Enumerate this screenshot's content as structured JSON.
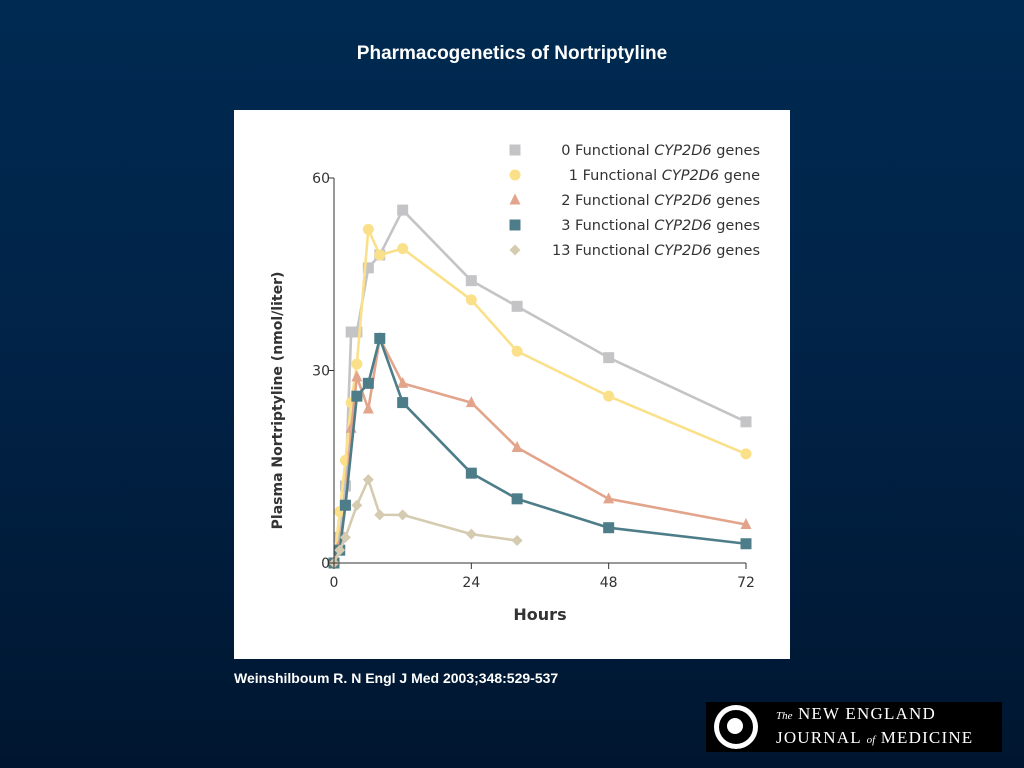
{
  "slide": {
    "title": "Pharmacogenetics of Nortriptyline",
    "citation": "Weinshilboum R. N Engl J Med 2003;348:529-537"
  },
  "logo": {
    "line1_prefix": "The",
    "line1_main": "NEW ENGLAND",
    "line2_a": "JOURNAL",
    "line2_of": "of",
    "line2_b": "MEDICINE"
  },
  "chart_data": {
    "type": "line",
    "title": "",
    "xlabel": "Hours",
    "ylabel": "Plasma Nortriptyline (nmol/liter)",
    "xlim": [
      0,
      72
    ],
    "ylim": [
      0,
      60
    ],
    "xticks": [
      0,
      24,
      48,
      72
    ],
    "yticks": [
      0,
      30,
      60
    ],
    "grid": false,
    "legend_position": "top-right",
    "series": [
      {
        "name": "0 Functional CYP2D6 genes",
        "legend_prefix": "0 Functional ",
        "legend_gene": "CYP2D6",
        "legend_suffix": " genes",
        "marker": "square",
        "color": "#c4c4c6",
        "x": [
          0,
          1,
          2,
          3,
          4,
          6,
          8,
          12,
          24,
          32,
          48,
          72
        ],
        "y": [
          0,
          4,
          12,
          36,
          36,
          46,
          48,
          55,
          44,
          40,
          32,
          22
        ]
      },
      {
        "name": "1 Functional CYP2D6 gene",
        "legend_prefix": "1 Functional ",
        "legend_gene": "CYP2D6",
        "legend_suffix": " gene",
        "marker": "circle",
        "color": "#fbe08a",
        "x": [
          0,
          1,
          2,
          3,
          4,
          6,
          8,
          12,
          24,
          32,
          48,
          72
        ],
        "y": [
          0,
          8,
          16,
          25,
          31,
          52,
          48,
          49,
          41,
          33,
          26,
          17
        ]
      },
      {
        "name": "2 Functional CYP2D6 genes",
        "legend_prefix": "2 Functional ",
        "legend_gene": "CYP2D6",
        "legend_suffix": " genes",
        "marker": "triangle",
        "color": "#e3a48c",
        "x": [
          0,
          1,
          2,
          3,
          4,
          6,
          8,
          12,
          24,
          32,
          48,
          72
        ],
        "y": [
          0,
          3,
          9,
          21,
          29,
          24,
          35,
          28,
          25,
          18,
          10,
          6
        ]
      },
      {
        "name": "3 Functional CYP2D6 genes",
        "legend_prefix": "3 Functional ",
        "legend_gene": "CYP2D6",
        "legend_suffix": " genes",
        "marker": "square",
        "color": "#4d7d88",
        "x": [
          0,
          1,
          2,
          4,
          6,
          8,
          12,
          24,
          32,
          48,
          72
        ],
        "y": [
          0,
          2,
          9,
          26,
          28,
          35,
          25,
          14,
          10,
          5.5,
          3
        ]
      },
      {
        "name": "13 Functional CYP2D6 genes",
        "legend_prefix": "13 Functional ",
        "legend_gene": "CYP2D6",
        "legend_suffix": " genes",
        "marker": "diamond",
        "color": "#d5cbb0",
        "x": [
          0,
          1,
          2,
          4,
          6,
          8,
          12,
          24,
          32
        ],
        "y": [
          0,
          2,
          4,
          9,
          13,
          7.5,
          7.5,
          4.5,
          3.5
        ]
      }
    ]
  }
}
